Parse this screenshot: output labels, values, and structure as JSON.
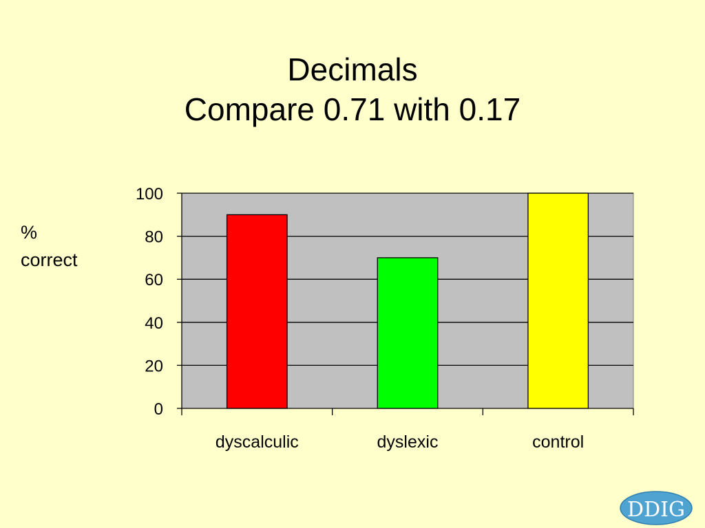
{
  "slide": {
    "title_line1": "Decimals",
    "title_line2": "Compare 0.71 with 0.17",
    "logo_text": "DDIG"
  },
  "chart_data": {
    "type": "bar",
    "title": "",
    "xlabel": "",
    "ylabel": "% correct",
    "ylabel_lines": [
      "%",
      "correct"
    ],
    "categories": [
      "dyscalculic",
      "dyslexic",
      "control"
    ],
    "values": [
      90,
      70,
      100
    ],
    "bar_colors": [
      "#FF0000",
      "#00FF00",
      "#FFFF00"
    ],
    "ylim": [
      0,
      100
    ],
    "yticks": [
      0,
      20,
      40,
      60,
      80,
      100
    ],
    "grid": true,
    "legend": "none",
    "plot_background": "#C0C0C0"
  }
}
